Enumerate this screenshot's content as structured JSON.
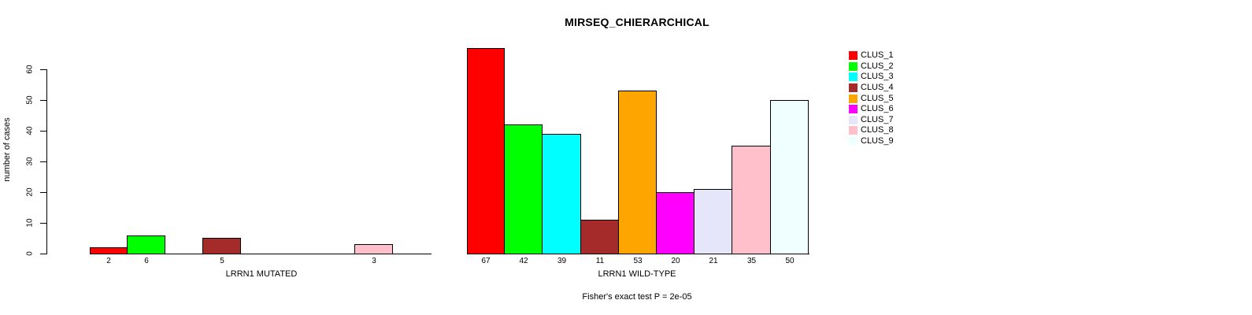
{
  "chart_data": {
    "type": "bar",
    "title": "MIRSEQ_CHIERARCHICAL",
    "ylabel": "number of cases",
    "ylim": [
      0,
      67
    ],
    "yticks": [
      0,
      10,
      20,
      30,
      40,
      50,
      60
    ],
    "grid": false,
    "categories": [
      "CLUS_1",
      "CLUS_2",
      "CLUS_3",
      "CLUS_4",
      "CLUS_5",
      "CLUS_6",
      "CLUS_7",
      "CLUS_8",
      "CLUS_9"
    ],
    "legend": {
      "position": "top-right",
      "entries": [
        {
          "label": "CLUS_1",
          "color": "#FF0000"
        },
        {
          "label": "CLUS_2",
          "color": "#00FF00"
        },
        {
          "label": "CLUS_3",
          "color": "#00FFFF"
        },
        {
          "label": "CLUS_4",
          "color": "#A52A2A"
        },
        {
          "label": "CLUS_5",
          "color": "#FFA500"
        },
        {
          "label": "CLUS_6",
          "color": "#FF00FF"
        },
        {
          "label": "CLUS_7",
          "color": "#E6E6FA"
        },
        {
          "label": "CLUS_8",
          "color": "#FFC0CB"
        },
        {
          "label": "CLUS_9",
          "color": "#F0FFFF"
        }
      ]
    },
    "panels": [
      {
        "xlabel": "LRRN1 MUTATED",
        "values": [
          2,
          6,
          0,
          5,
          0,
          0,
          0,
          3,
          0
        ],
        "bar_labels": [
          "2",
          "6",
          "",
          "5",
          "",
          "",
          "",
          "3",
          ""
        ]
      },
      {
        "xlabel": "LRRN1 WILD-TYPE",
        "values": [
          67,
          42,
          39,
          11,
          53,
          20,
          21,
          35,
          50
        ],
        "bar_labels": [
          "67",
          "42",
          "39",
          "11",
          "53",
          "20",
          "21",
          "35",
          "50"
        ]
      }
    ],
    "annotation": "Fisher's exact test P = 2e-05"
  }
}
